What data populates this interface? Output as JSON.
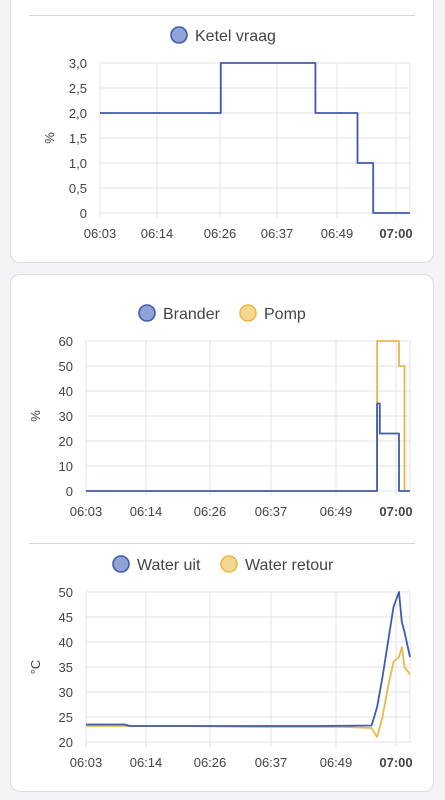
{
  "colors": {
    "blue": "#3f5bab",
    "yellow": "#e8b94a",
    "blue_fill": "#8fa3d9",
    "yellow_fill": "#f4d892",
    "grid": "#e3e3e3",
    "text": "#444444"
  },
  "charts": [
    {
      "id": "ketel",
      "legend": [
        {
          "name": "Ketel vraag",
          "color": "#3f5bab",
          "fill": "#8fa3d9"
        }
      ],
      "ylabel": "%",
      "yticks": [
        "3,0",
        "2,5",
        "2,0",
        "1,5",
        "1,0",
        "0,5",
        "0"
      ],
      "xticks": [
        "06:03",
        "06:14",
        "06:26",
        "06:37",
        "06:49",
        "07:00"
      ]
    },
    {
      "id": "brander",
      "legend": [
        {
          "name": "Brander",
          "color": "#3f5bab",
          "fill": "#8fa3d9"
        },
        {
          "name": "Pomp",
          "color": "#e8b94a",
          "fill": "#f4d892"
        }
      ],
      "ylabel": "%",
      "yticks": [
        "60",
        "50",
        "40",
        "30",
        "20",
        "10",
        "0"
      ],
      "xticks": [
        "06:03",
        "06:14",
        "06:26",
        "06:37",
        "06:49",
        "07:00"
      ]
    },
    {
      "id": "water",
      "legend": [
        {
          "name": "Water uit",
          "color": "#3f5bab",
          "fill": "#8fa3d9"
        },
        {
          "name": "Water retour",
          "color": "#e8b94a",
          "fill": "#f4d892"
        }
      ],
      "ylabel": "°C",
      "yticks": [
        "50",
        "45",
        "40",
        "35",
        "30",
        "25",
        "20"
      ],
      "xticks": [
        "06:03",
        "06:14",
        "06:26",
        "06:37",
        "06:49",
        "07:00"
      ]
    }
  ],
  "chart_data": [
    {
      "type": "line",
      "step": true,
      "x_range": [
        "06:03",
        "07:02"
      ],
      "ylim": [
        0,
        3
      ],
      "series": [
        {
          "name": "Ketel vraag",
          "points": [
            [
              "06:03",
              2
            ],
            [
              "06:26",
              2
            ],
            [
              "06:26",
              3
            ],
            [
              "06:44",
              3
            ],
            [
              "06:44",
              2
            ],
            [
              "06:52",
              2
            ],
            [
              "06:52",
              1
            ],
            [
              "06:55",
              1
            ],
            [
              "06:55",
              0
            ],
            [
              "07:02",
              0
            ]
          ]
        }
      ]
    },
    {
      "type": "line",
      "step": true,
      "x_range": [
        "06:03",
        "07:02"
      ],
      "ylim": [
        0,
        60
      ],
      "series": [
        {
          "name": "Brander",
          "points": [
            [
              "06:03",
              0
            ],
            [
              "06:56",
              0
            ],
            [
              "06:56",
              35
            ],
            [
              "06:56.5",
              35
            ],
            [
              "06:56.5",
              23
            ],
            [
              "07:00",
              23
            ],
            [
              "07:00",
              0
            ],
            [
              "07:02",
              0
            ]
          ]
        },
        {
          "name": "Pomp",
          "points": [
            [
              "06:56",
              0
            ],
            [
              "06:56",
              60
            ],
            [
              "07:00",
              60
            ],
            [
              "07:00",
              50
            ],
            [
              "07:01",
              50
            ],
            [
              "07:01",
              0
            ]
          ]
        }
      ]
    },
    {
      "type": "line",
      "x_range": [
        "06:03",
        "07:02"
      ],
      "ylim": [
        20,
        50
      ],
      "series": [
        {
          "name": "Water uit",
          "points": [
            [
              "06:03",
              23.5
            ],
            [
              "06:10",
              23.5
            ],
            [
              "06:11",
              23.2
            ],
            [
              "06:30",
              23.2
            ],
            [
              "06:45",
              23.2
            ],
            [
              "06:55",
              23.3
            ],
            [
              "06:56",
              27
            ],
            [
              "06:57",
              33
            ],
            [
              "06:58",
              40
            ],
            [
              "06:59",
              47
            ],
            [
              "07:00",
              50
            ],
            [
              "07:00.5",
              44
            ],
            [
              "07:01",
              42
            ],
            [
              "07:02",
              37
            ]
          ]
        },
        {
          "name": "Water retour",
          "points": [
            [
              "06:03",
              23.2
            ],
            [
              "06:20",
              23.2
            ],
            [
              "06:35",
              23.0
            ],
            [
              "06:50",
              23.0
            ],
            [
              "06:55",
              22.8
            ],
            [
              "06:56",
              21
            ],
            [
              "06:57",
              25
            ],
            [
              "06:58",
              31
            ],
            [
              "06:59",
              36
            ],
            [
              "07:00",
              37
            ],
            [
              "07:00.5",
              39
            ],
            [
              "07:01",
              35
            ],
            [
              "07:02",
              33.5
            ]
          ]
        }
      ]
    }
  ]
}
